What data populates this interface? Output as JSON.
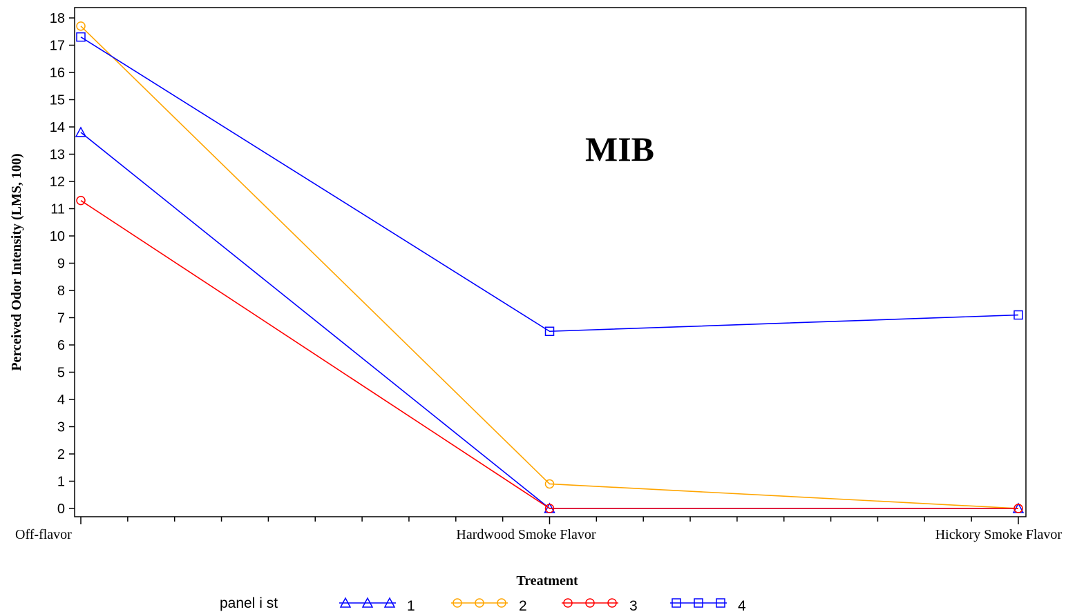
{
  "chart_data": {
    "type": "line",
    "annotation": "MIB",
    "xlabel": "Treatment",
    "ylabel": "Perceived Odor Intensity (LMS, 100)",
    "categories": [
      "Off-flavor",
      "Hardwood Smoke Flavor",
      "Hickory Smoke Flavor"
    ],
    "yticks": [
      "0",
      "1",
      "2",
      "3",
      "4",
      "5",
      "6",
      "7",
      "8",
      "9",
      "10",
      "11",
      "12",
      "13",
      "14",
      "15",
      "16",
      "17",
      "18"
    ],
    "ylim": [
      0,
      18
    ],
    "legend_title": "panel i st",
    "legend_position": "bottom",
    "grid": false,
    "series": [
      {
        "name": "1",
        "color": "#0000ff",
        "marker": "triangle",
        "values": [
          13.8,
          0,
          0
        ]
      },
      {
        "name": "2",
        "color": "#ffa500",
        "marker": "circle",
        "values": [
          17.7,
          0.9,
          0
        ]
      },
      {
        "name": "3",
        "color": "#ff0000",
        "marker": "circle",
        "values": [
          11.3,
          0,
          0
        ]
      },
      {
        "name": "4",
        "color": "#0000ff",
        "marker": "square",
        "values": [
          17.3,
          6.5,
          7.1
        ]
      }
    ]
  }
}
